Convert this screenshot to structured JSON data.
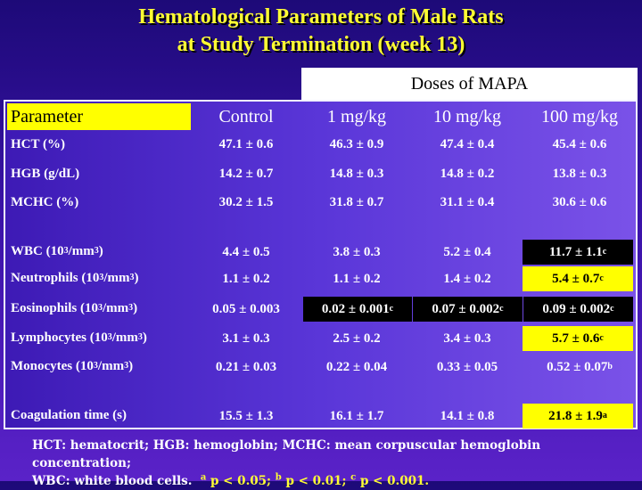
{
  "title": {
    "line1": "Hematological Parameters of Male Rats",
    "line2": "at Study Termination (week 13)"
  },
  "table": {
    "group_header": "Doses of MAPA",
    "headers": {
      "parameter": "Parameter",
      "control": "Control",
      "dose1": "1 mg/kg",
      "dose2": "10 mg/kg",
      "dose3": "100 mg/kg"
    },
    "rows": [
      {
        "label": "HCT (%)",
        "control": "47.1 ± 0.6",
        "dose1": "46.3 ± 0.9",
        "dose2": "47.4 ± 0.4",
        "dose3": "45.4 ± 0.6"
      },
      {
        "label": "HGB (g/dL)",
        "control": "14.2 ± 0.7",
        "dose1": "14.8 ± 0.3",
        "dose2": "14.8 ± 0.2",
        "dose3": "13.8 ± 0.3"
      },
      {
        "label": "MCHC (%)",
        "control": "30.2 ± 1.5",
        "dose1": "31.8 ± 0.7",
        "dose2": "31.1 ± 0.4",
        "dose3": "30.6 ± 0.6"
      },
      {
        "label_pre": "WBC (10",
        "label_sup1": "3",
        "label_mid": "/mm",
        "label_sup2": "3",
        "label_post": ")",
        "control": "4.4 ± 0.5",
        "dose1": "3.8 ± 0.3",
        "dose2": "5.2 ± 0.4",
        "dose3": "11.7 ± 1.1",
        "dose3_sup": "c"
      },
      {
        "label_pre": "Neutrophils (10",
        "label_sup1": "3",
        "label_mid": "/mm",
        "label_sup2": "3",
        "label_post": ")",
        "control": "1.1 ± 0.2",
        "dose1": "1.1 ± 0.2",
        "dose2": "1.4 ± 0.2",
        "dose3": "5.4 ± 0.7",
        "dose3_sup": "c"
      },
      {
        "label_pre": "Eosinophils (10",
        "label_sup1": "3",
        "label_mid": "/mm",
        "label_sup2": "3",
        "label_post": ")",
        "control": "0.05 ± 0.003",
        "dose1": "0.02 ± 0.001",
        "dose1_sup": "c",
        "dose2": "0.07 ± 0.002",
        "dose2_sup": "c",
        "dose3": "0.09 ± 0.002",
        "dose3_sup": "c"
      },
      {
        "label_pre": "Lymphocytes (10",
        "label_sup1": "3",
        "label_mid": "/mm",
        "label_sup2": "3",
        "label_post": ")",
        "control": "3.1 ± 0.3",
        "dose1": "2.5 ± 0.2",
        "dose2": "3.4 ± 0.3",
        "dose3": "5.7 ± 0.6",
        "dose3_sup": "c"
      },
      {
        "label_pre": "Monocytes (10",
        "label_sup1": "3",
        "label_mid": "/mm",
        "label_sup2": "3",
        "label_post": ")",
        "control": "0.21 ± 0.03",
        "dose1": "0.22 ± 0.04",
        "dose2": "0.33 ± 0.05",
        "dose3": "0.52 ± 0.07",
        "dose3_sup": "b"
      },
      {
        "label": "Coagulation time (s)",
        "control": "15.5 ± 1.3",
        "dose1": "16.1 ± 1.7",
        "dose2": "14.1 ± 0.8",
        "dose3": "21.8 ± 1.9",
        "dose3_sup": "a"
      }
    ]
  },
  "footnote": {
    "line1": "HCT: hematocrit; HGB: hemoglobin; MCHC: mean corpuscular hemoglobin concentration;",
    "line2_start": "WBC: white blood cells.",
    "sup_a": "a",
    "text_a": "p < 0.05;",
    "sup_b": "b",
    "text_b": "p < 0.01;",
    "sup_c": "c",
    "text_c": "p < 0.001."
  },
  "colors": {
    "title": "#ffff33",
    "highlight_yellow": "#ffff00",
    "highlight_black": "#000000",
    "background": "#3a12a8"
  }
}
